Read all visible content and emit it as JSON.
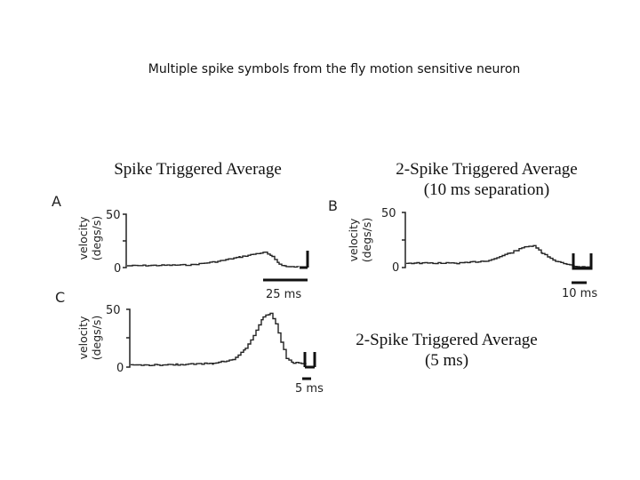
{
  "slide": {
    "title": "Multiple spike symbols from the fly motion sensitive neuron",
    "labels": {
      "sta": "Spike Triggered Average",
      "sta2_10_line1": "2-Spike Triggered Average",
      "sta2_10_line2": "(10 ms separation)",
      "sta2_5_line1": "2-Spike Triggered Average",
      "sta2_5_line2": "(5 ms)"
    }
  },
  "panels": [
    {
      "id": "A",
      "letter": "A",
      "ylabel_line1": "velocity",
      "ylabel_line2": "(degs/s)",
      "ytick_top": "50",
      "ytick_bottom": "0",
      "scale_bar_label": "25 ms",
      "spike_count": 1
    },
    {
      "id": "B",
      "letter": "B",
      "ylabel_line1": "velocity",
      "ylabel_line2": "(degs/s)",
      "ytick_top": "50",
      "ytick_bottom": "0",
      "scale_bar_label": "10 ms",
      "spike_count": 2
    },
    {
      "id": "C",
      "letter": "C",
      "ylabel_line1": "velocity",
      "ylabel_line2": "(degs/s)",
      "ytick_top": "50",
      "ytick_bottom": "0",
      "scale_bar_label": "5 ms",
      "spike_count": 2
    }
  ]
}
